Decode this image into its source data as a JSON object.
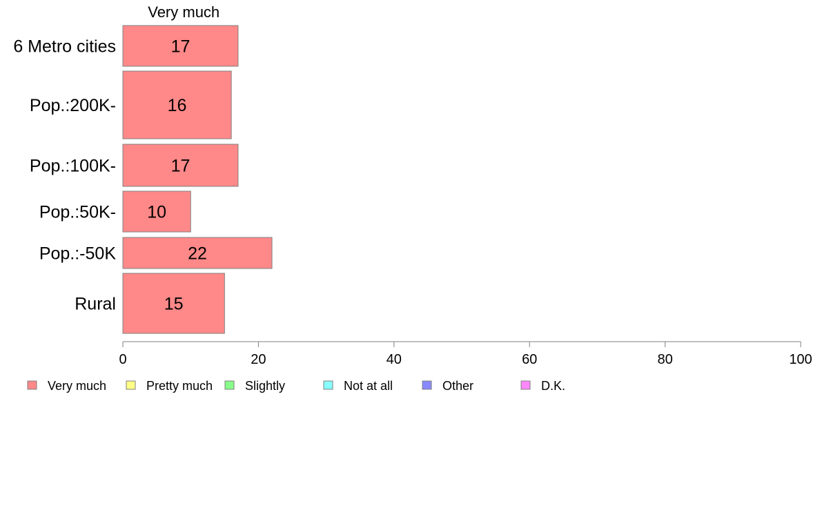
{
  "chart_data": {
    "type": "bar",
    "orientation": "horizontal",
    "stacked": true,
    "column_title": "Very much",
    "categories": [
      "6 Metro cities",
      "Pop.:200K-",
      "Pop.:100K-",
      "Pop.:50K-",
      "Pop.:-50K",
      "Rural"
    ],
    "series": [
      {
        "name": "Very much",
        "values": [
          17,
          16,
          17,
          10,
          22,
          15
        ]
      }
    ],
    "xlim": [
      0,
      100
    ],
    "x_ticks": [
      0,
      20,
      40,
      60,
      80,
      100
    ],
    "grid": false,
    "legend": {
      "position": "bottom-left",
      "entries": [
        "Very much",
        "Pretty much",
        "Slightly",
        "Not at all",
        "Other",
        "D.K."
      ]
    },
    "colors": {
      "Very much": "#ff8888",
      "Pretty much": "#ffff88",
      "Slightly": "#88ff88",
      "Not at all": "#88ffff",
      "Other": "#8888ff",
      "D.K.": "#ff88ff",
      "bar_stroke": "#7f7f7f",
      "axis": "#7f7f7f"
    }
  }
}
